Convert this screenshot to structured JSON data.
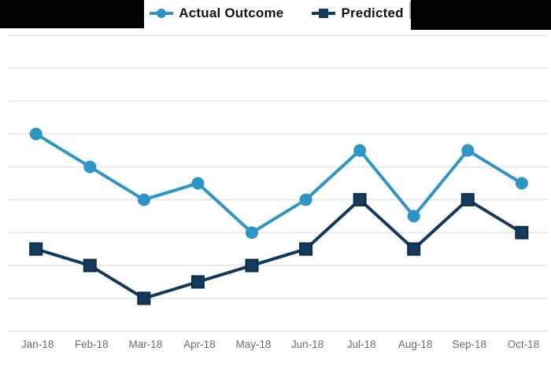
{
  "legend": {
    "items": [
      {
        "label": "Actual Outcome",
        "marker": "circle",
        "color": "#2E95C5"
      },
      {
        "label": "Predicted",
        "marker": "square",
        "color": "#133A5C"
      }
    ]
  },
  "redactions": {
    "top_left": "black box",
    "top_right": "black box"
  },
  "colors": {
    "actual": "#2E95C5",
    "predicted": "#133A5C",
    "predicted_border": "#0D2C47",
    "gridline": "#E7E7E7",
    "axis_label": "#6E6E6E",
    "legend_text": "#121212",
    "redaction": "#000000",
    "background": "#FFFFFF"
  },
  "chart_data": {
    "type": "line",
    "title": "",
    "categories": [
      "Jan-18",
      "Feb-18",
      "Mar-18",
      "Apr-18",
      "May-18",
      "Jun-18",
      "Jul-18",
      "Aug-18",
      "Sep-18",
      "Oct-18"
    ],
    "series": [
      {
        "name": "Actual Outcome",
        "marker": "circle",
        "color": "#2E95C5",
        "values": [
          6,
          5,
          4,
          4.5,
          3,
          4,
          5.5,
          3.5,
          5.5,
          4.5
        ]
      },
      {
        "name": "Predicted",
        "marker": "square",
        "color": "#133A5C",
        "values": [
          2.5,
          2,
          1,
          1.5,
          2,
          2.5,
          4,
          2.5,
          4,
          3
        ]
      }
    ],
    "xlabel": "",
    "ylabel": "",
    "ylim": [
      0,
      9
    ],
    "gridlines": 10,
    "grid": "horizontal",
    "legend_position": "top-center",
    "y_axis_labels_visible": false,
    "units_note": "Values read in gridline units: bottom gridline = 0, each gridline = 1; y-axis tick labels are cropped out of the screenshot"
  }
}
